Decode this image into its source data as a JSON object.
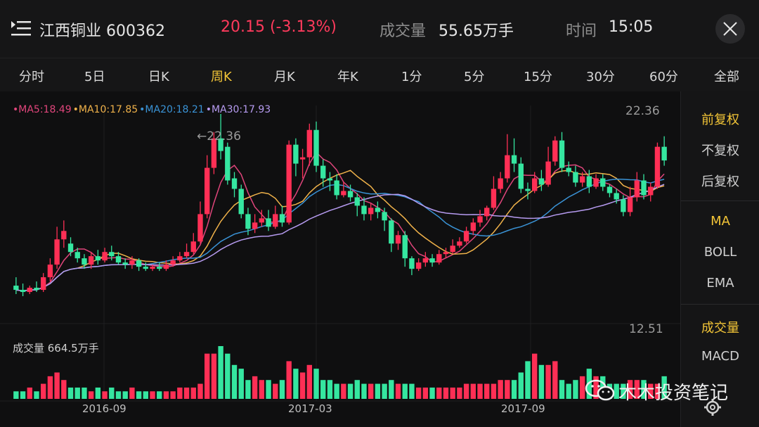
{
  "header": {
    "stock_name": "江西铜业 600362",
    "price": "20.15 (-3.13%)",
    "volume_label": "成交量",
    "volume_value": "55.65万手",
    "time_label": "时间",
    "time_value": "15:05"
  },
  "tabs": [
    "分时",
    "5日",
    "日K",
    "周K",
    "月K",
    "年K",
    "1分",
    "5分",
    "15分",
    "30分",
    "60分",
    "全部"
  ],
  "active_tab": "周K",
  "ma_legend": {
    "ma5": "•MA5:18.49",
    "ma10": "•MA10:17.85",
    "ma20": "•MA20:18.21",
    "ma30": "•MA30:17.93"
  },
  "price_axis": {
    "max": "22.36",
    "min": "12.51",
    "peak_label": "←22.36"
  },
  "volume_legend": "成交量  664.5万手",
  "dates": [
    "2016-09",
    "2017-03",
    "2017-09"
  ],
  "side_panel": {
    "fq": [
      "前复权",
      "不复权",
      "后复权"
    ],
    "indicators": [
      "MA",
      "BOLL",
      "EMA"
    ],
    "sub": [
      "成交量",
      "MACD"
    ]
  },
  "watermark": "木木投资笔记",
  "colors": {
    "up": "#ff2f55",
    "down": "#35e6a0",
    "accent": "#f3c537",
    "ma5": "#e0457b",
    "ma10": "#f0b24a",
    "ma20": "#3a93d6",
    "ma30": "#b69bf0"
  },
  "chart_data": {
    "type": "candlestick",
    "ylim": [
      12.51,
      22.36
    ],
    "candles": [
      [
        14.2,
        14.0,
        14.6,
        13.8
      ],
      [
        14.0,
        13.9,
        14.3,
        13.7
      ],
      [
        13.9,
        14.1,
        14.2,
        13.8
      ],
      [
        14.1,
        14.0,
        14.4,
        13.9
      ],
      [
        14.0,
        14.6,
        14.8,
        13.9
      ],
      [
        14.6,
        15.2,
        15.5,
        14.4
      ],
      [
        15.2,
        16.4,
        17.0,
        15.0
      ],
      [
        16.4,
        16.8,
        17.3,
        16.0
      ],
      [
        16.2,
        15.8,
        16.5,
        15.6
      ],
      [
        15.8,
        15.5,
        16.0,
        15.3
      ],
      [
        15.5,
        15.2,
        15.7,
        15.0
      ],
      [
        15.2,
        15.6,
        15.8,
        15.0
      ],
      [
        15.6,
        15.4,
        15.9,
        15.2
      ],
      [
        15.4,
        15.8,
        16.0,
        15.3
      ],
      [
        15.8,
        15.6,
        16.1,
        15.4
      ],
      [
        15.6,
        15.3,
        15.8,
        15.2
      ],
      [
        15.3,
        15.2,
        15.5,
        15.0
      ],
      [
        15.2,
        15.4,
        15.6,
        15.0
      ],
      [
        15.4,
        15.1,
        15.5,
        14.9
      ],
      [
        15.1,
        15.0,
        15.3,
        14.9
      ],
      [
        15.0,
        15.1,
        15.2,
        14.9
      ],
      [
        15.1,
        15.0,
        15.3,
        14.9
      ],
      [
        15.0,
        15.2,
        15.4,
        14.9
      ],
      [
        15.2,
        15.4,
        15.6,
        15.1
      ],
      [
        15.4,
        15.6,
        15.8,
        15.3
      ],
      [
        15.6,
        15.8,
        16.2,
        15.5
      ],
      [
        15.8,
        16.3,
        16.7,
        15.7
      ],
      [
        16.3,
        17.6,
        18.2,
        16.2
      ],
      [
        17.6,
        19.8,
        20.4,
        17.4
      ],
      [
        19.8,
        21.2,
        21.5,
        19.5
      ],
      [
        21.2,
        20.6,
        22.36,
        20.2
      ],
      [
        20.8,
        19.2,
        21.0,
        19.0
      ],
      [
        19.3,
        18.8,
        19.6,
        18.4
      ],
      [
        18.8,
        17.6,
        19.0,
        17.4
      ],
      [
        17.6,
        16.9,
        17.9,
        16.6
      ],
      [
        16.9,
        17.2,
        17.6,
        16.7
      ],
      [
        17.2,
        17.4,
        17.8,
        17.0
      ],
      [
        17.4,
        17.0,
        17.8,
        16.8
      ],
      [
        17.0,
        17.6,
        18.0,
        16.9
      ],
      [
        17.6,
        17.2,
        18.0,
        17.0
      ],
      [
        17.2,
        20.9,
        21.1,
        17.1
      ],
      [
        20.9,
        20.0,
        21.2,
        19.4
      ],
      [
        20.2,
        20.3,
        20.7,
        19.3
      ],
      [
        20.3,
        21.6,
        21.9,
        19.9
      ],
      [
        21.6,
        19.9,
        22.0,
        19.6
      ],
      [
        19.9,
        19.3,
        20.2,
        18.9
      ],
      [
        19.3,
        19.2,
        19.6,
        18.7
      ],
      [
        19.2,
        18.5,
        19.5,
        18.3
      ],
      [
        18.5,
        18.7,
        19.1,
        18.4
      ],
      [
        18.7,
        18.4,
        19.0,
        18.2
      ],
      [
        18.4,
        18.0,
        18.6,
        17.5
      ],
      [
        18.0,
        17.6,
        18.4,
        17.3
      ],
      [
        17.6,
        17.9,
        18.1,
        17.3
      ],
      [
        17.9,
        17.7,
        18.2,
        17.4
      ],
      [
        17.7,
        17.3,
        17.9,
        16.8
      ],
      [
        17.3,
        16.2,
        17.4,
        15.8
      ],
      [
        16.2,
        16.6,
        16.8,
        15.9
      ],
      [
        16.6,
        15.5,
        16.8,
        15.1
      ],
      [
        15.5,
        15.0,
        15.6,
        14.7
      ],
      [
        15.0,
        15.3,
        15.5,
        14.9
      ],
      [
        15.3,
        15.5,
        15.8,
        15.1
      ],
      [
        15.5,
        15.3,
        15.7,
        15.1
      ],
      [
        15.3,
        15.7,
        15.9,
        15.2
      ],
      [
        15.7,
        15.8,
        16.0,
        15.5
      ],
      [
        15.8,
        16.1,
        16.4,
        15.7
      ],
      [
        16.1,
        16.3,
        16.5,
        16.0
      ],
      [
        16.3,
        16.8,
        17.0,
        16.2
      ],
      [
        16.8,
        17.2,
        17.4,
        16.6
      ],
      [
        17.2,
        17.5,
        17.8,
        17.0
      ],
      [
        17.5,
        17.9,
        18.0,
        17.3
      ],
      [
        17.9,
        18.8,
        19.4,
        17.8
      ],
      [
        18.8,
        19.3,
        19.6,
        18.6
      ],
      [
        19.3,
        20.4,
        21.4,
        19.1
      ],
      [
        20.4,
        20.0,
        21.2,
        19.6
      ],
      [
        20.0,
        18.8,
        20.3,
        18.6
      ],
      [
        18.8,
        18.7,
        19.1,
        18.3
      ],
      [
        18.7,
        19.3,
        19.6,
        18.6
      ],
      [
        19.3,
        19.0,
        19.7,
        18.7
      ],
      [
        19.0,
        20.1,
        20.8,
        18.9
      ],
      [
        20.1,
        21.1,
        21.3,
        19.9
      ],
      [
        21.1,
        19.8,
        21.5,
        19.6
      ],
      [
        19.8,
        19.6,
        20.1,
        19.4
      ],
      [
        19.6,
        19.1,
        19.9,
        18.9
      ],
      [
        19.1,
        19.4,
        19.6,
        18.9
      ],
      [
        19.4,
        18.9,
        19.7,
        18.6
      ],
      [
        18.9,
        19.3,
        19.5,
        18.8
      ],
      [
        19.3,
        18.9,
        19.5,
        18.7
      ],
      [
        18.9,
        18.6,
        19.0,
        18.4
      ],
      [
        18.6,
        18.3,
        18.8,
        18.1
      ],
      [
        18.3,
        17.7,
        18.5,
        17.5
      ],
      [
        17.7,
        18.4,
        18.9,
        17.5
      ],
      [
        18.4,
        19.2,
        19.6,
        18.2
      ],
      [
        19.2,
        18.5,
        19.5,
        18.3
      ],
      [
        18.5,
        18.9,
        19.1,
        18.2
      ],
      [
        18.9,
        20.8,
        21.0,
        18.8
      ],
      [
        20.8,
        20.15,
        21.3,
        19.9
      ]
    ],
    "volumes": [
      2,
      2,
      3,
      2,
      4,
      6,
      7,
      5,
      3,
      3,
      3,
      2,
      3,
      2,
      3,
      2,
      2,
      3,
      2,
      2,
      2,
      2,
      2,
      2,
      3,
      3,
      3,
      4,
      12,
      12,
      14,
      12,
      9,
      8,
      5,
      6,
      5,
      5,
      4,
      5,
      10,
      8,
      7,
      9,
      8,
      5,
      5,
      4,
      4,
      4,
      5,
      4,
      4,
      4,
      4,
      5,
      4,
      4,
      4,
      3,
      3,
      3,
      3,
      3,
      3,
      3,
      4,
      4,
      4,
      4,
      4,
      5,
      5,
      5,
      7,
      10,
      12,
      9,
      9,
      10,
      5,
      4,
      5,
      6,
      8,
      6,
      6,
      4,
      4,
      4,
      5,
      5,
      5,
      4,
      4,
      6
    ]
  }
}
